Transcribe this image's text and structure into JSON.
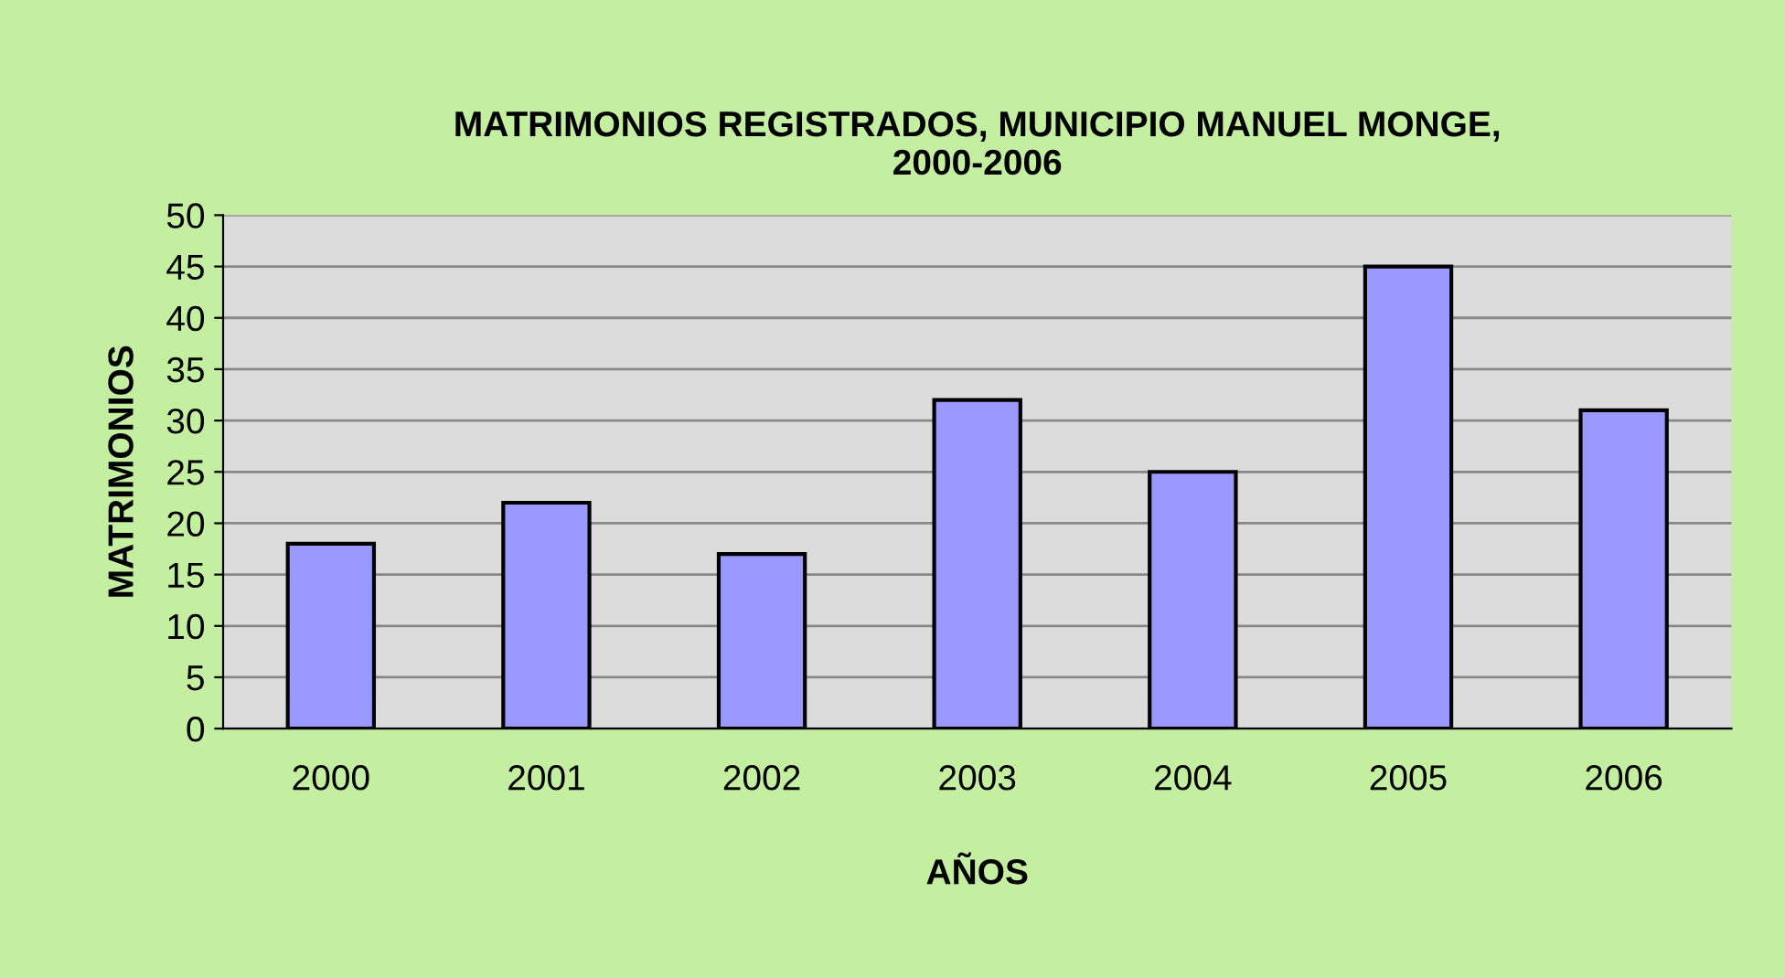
{
  "chart_data": {
    "type": "bar",
    "title": "MATRIMONIOS REGISTRADOS, MUNICIPIO MANUEL MONGE,\n2000-2006",
    "xlabel": "AÑOS",
    "ylabel": "MATRIMONIOS",
    "categories": [
      "2000",
      "2001",
      "2002",
      "2003",
      "2004",
      "2005",
      "2006"
    ],
    "values": [
      18,
      22,
      17,
      32,
      25,
      45,
      31
    ],
    "color": "#9999ff",
    "ylim": [
      0,
      50
    ],
    "yticks": [
      0,
      5,
      10,
      15,
      20,
      25,
      30,
      35,
      40,
      45,
      50
    ],
    "grid": "y"
  }
}
